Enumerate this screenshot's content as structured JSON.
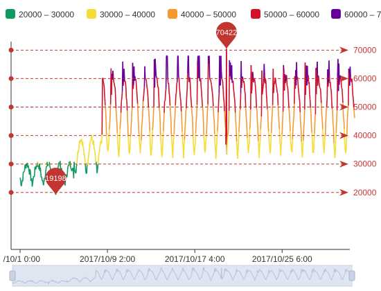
{
  "chart_data": {
    "type": "line",
    "legend": {
      "position": "top",
      "items": [
        {
          "label": "20000 – 30000",
          "color": "#0f9a63"
        },
        {
          "label": "30000 – 40000",
          "color": "#f5dc32"
        },
        {
          "label": "40000 – 50000",
          "color": "#f5992f"
        },
        {
          "label": "50000 – 60000",
          "color": "#d3122b"
        },
        {
          "label": "60000 – 7",
          "color": "#67009a"
        }
      ]
    },
    "x_range": [
      "2017/10/1 0:00",
      "2017/11/1 0:00"
    ],
    "x_tick_labels": [
      {
        "label": "/10/1 0:00",
        "day": 0
      },
      {
        "label": "2017/10/9 2:00",
        "day": 8.083
      },
      {
        "label": "2017/10/17 4:00",
        "day": 16.167
      },
      {
        "label": "2017/10/25 6:00",
        "day": 24.25
      }
    ],
    "y_range": [
      0,
      73000
    ],
    "grid": false,
    "visual_map_pieces": [
      {
        "min": 20000,
        "max": 30000,
        "color": "#0f9a63"
      },
      {
        "min": 30000,
        "max": 40000,
        "color": "#f5dc32"
      },
      {
        "min": 40000,
        "max": 50000,
        "color": "#f5992f"
      },
      {
        "min": 50000,
        "max": 60000,
        "color": "#d3122b"
      },
      {
        "min": 60000,
        "max": 70000,
        "color": "#67009a"
      }
    ],
    "mark_lines": [
      {
        "value": 20000,
        "label": "20000"
      },
      {
        "value": 30000,
        "label": "30000"
      },
      {
        "value": 40000,
        "label": "40000"
      },
      {
        "value": 50000,
        "label": "50000"
      },
      {
        "value": 60000,
        "label": "60000"
      },
      {
        "value": 70000,
        "label": "70000"
      }
    ],
    "mark_points": [
      {
        "type": "min",
        "label": "19198",
        "day": 3.3,
        "value": 19198
      },
      {
        "type": "max",
        "label": "70422",
        "day": 19.1,
        "value": 70422
      }
    ],
    "daily_profile": {
      "phase_1": {
        "day_start": 0,
        "day_end": 5,
        "low": 23000,
        "high": 30000
      },
      "phase_2": {
        "day_start": 5,
        "day_end": 7.6,
        "low": 27000,
        "high": 39000
      },
      "phase_3": {
        "day_start": 7.6,
        "day_end": 31,
        "low": 33000,
        "high": 60000,
        "spikes": 67000
      }
    },
    "data_zoom": {
      "start": 0,
      "end": 100
    }
  }
}
